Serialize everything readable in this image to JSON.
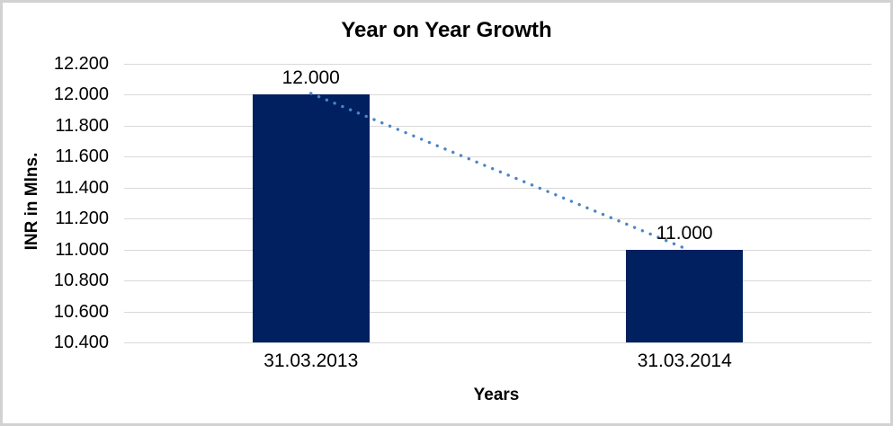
{
  "chart_data": {
    "type": "bar",
    "title": "Year on Year Growth",
    "xlabel": "Years",
    "ylabel": "INR in Mlns.",
    "categories": [
      "31.03.2013",
      "31.03.2014"
    ],
    "values": [
      12000,
      11000
    ],
    "data_labels": [
      "12.000",
      "11.000"
    ],
    "y_ticks": [
      "12.200",
      "12.000",
      "11.800",
      "11.600",
      "11.400",
      "11.200",
      "11.000",
      "10.800",
      "10.600",
      "10.400"
    ],
    "ylim": [
      10400,
      12200
    ],
    "grid": true,
    "legend": "none",
    "colors": {
      "bar": "#002060",
      "trendline": "#4a86c8",
      "gridline": "#d9d9d9",
      "border": "#d2d2d2",
      "text": "#000000"
    },
    "trendline": {
      "type": "linear",
      "style": "dotted",
      "from_value": 12000,
      "to_value": 11000
    }
  }
}
